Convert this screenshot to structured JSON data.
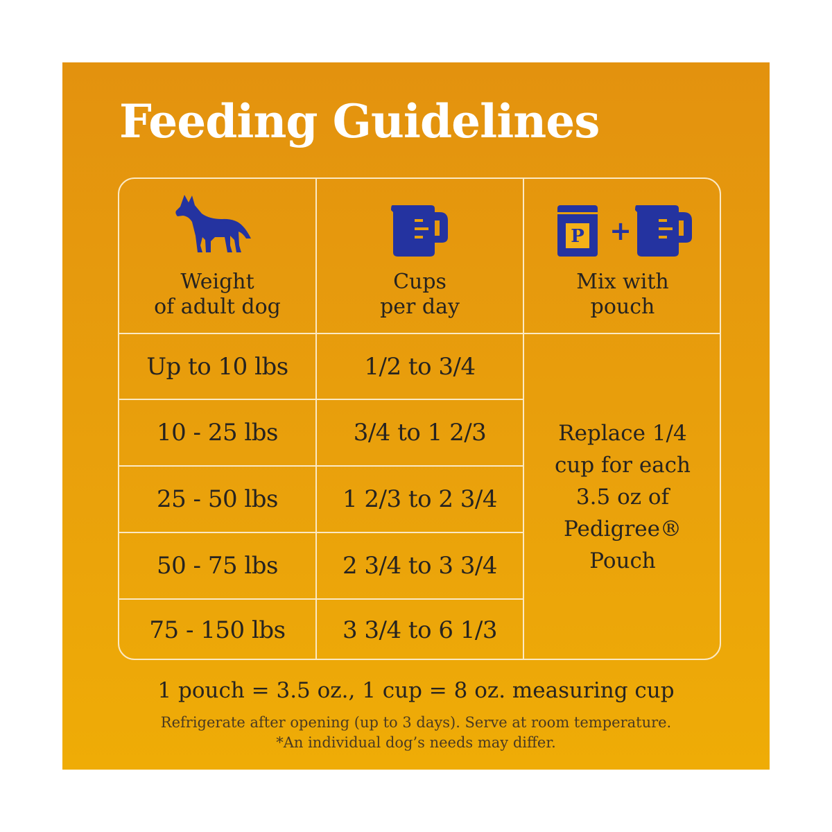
{
  "title": "Feeding Guidelines",
  "columns": {
    "weight": "Weight\nof adult dog",
    "cups": "Cups\nper day",
    "mix": "Mix with\npouch"
  },
  "icons": {
    "weight": "dog-icon",
    "cups": "measuring-cup-icon",
    "mix": "pouch-plus-cup-icon",
    "pouch_letter": "P",
    "plus": "+"
  },
  "rows": [
    {
      "weight": "Up to 10 lbs",
      "cups": "1/2 to 3/4"
    },
    {
      "weight": "10 - 25 lbs",
      "cups": "3/4 to 1 2/3"
    },
    {
      "weight": "25 - 50 lbs",
      "cups": "1 2/3 to 2 3/4"
    },
    {
      "weight": "50 - 75 lbs",
      "cups": "2 3/4 to 3 3/4"
    },
    {
      "weight": "75 - 150 lbs",
      "cups": "3 3/4 to 6 1/3"
    }
  ],
  "mix_note": "Replace 1/4 cup for each 3.5 oz of Pedigree® Pouch",
  "footer": {
    "main": "1 pouch = 3.5 oz., 1 cup = 8 oz. measuring cup",
    "note1": "Refrigerate after opening (up to 3 days). Serve at room temperature.",
    "note2": "*An individual dog’s needs may differ."
  },
  "colors": {
    "background_top": "#e3920e",
    "background_bottom": "#efac06",
    "icon_blue": "#2433a0",
    "title": "#ffffff",
    "grid_lines": "#fbe9c4",
    "text": "#262320"
  }
}
